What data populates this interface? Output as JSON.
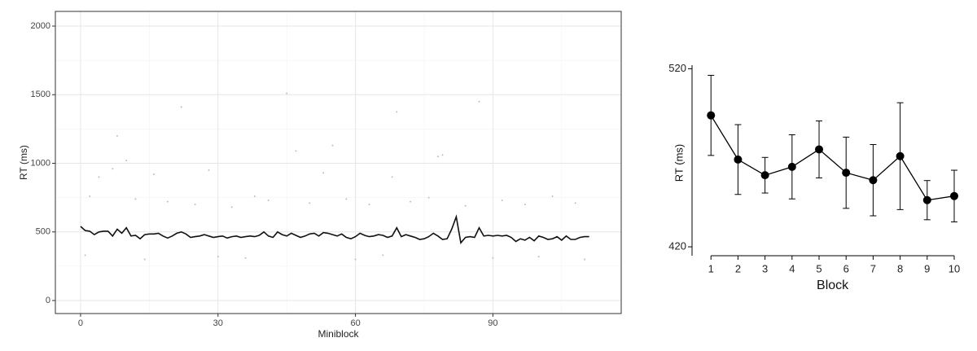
{
  "chart_data": [
    {
      "type": "scatter",
      "x_label": "Miniblock",
      "y_label": "RT (ms)",
      "xlim": [
        -5.5,
        118
      ],
      "ylim": [
        -95,
        2107
      ],
      "xticks": [
        0,
        30,
        60,
        90
      ],
      "yticks": [
        0,
        500,
        1000,
        1500,
        2000
      ],
      "x_minor_ticks": [
        15,
        45,
        75,
        105
      ],
      "y_minor_ticks": [
        250,
        750,
        1250,
        1750
      ],
      "grid": true,
      "points": {
        "color": "#bdbdbd",
        "x": [
          8,
          10,
          22,
          45,
          69,
          87,
          47,
          55,
          7,
          28,
          53,
          78,
          16,
          4,
          68,
          79,
          2,
          12,
          19,
          25,
          33,
          38,
          41,
          50,
          58,
          63,
          72,
          76,
          84,
          92,
          97,
          103,
          108,
          1,
          14,
          30,
          36,
          60,
          66,
          90,
          100,
          110
        ],
        "values": [
          1200,
          1020,
          1410,
          1510,
          1375,
          1450,
          1090,
          1130,
          960,
          950,
          930,
          1050,
          920,
          900,
          900,
          1060,
          760,
          740,
          720,
          700,
          680,
          760,
          730,
          710,
          740,
          700,
          720,
          750,
          690,
          730,
          700,
          760,
          710,
          330,
          300,
          320,
          310,
          300,
          330,
          310,
          320,
          300
        ]
      },
      "line": {
        "color": "#111111",
        "x": [
          0,
          1,
          2,
          3,
          4,
          5,
          6,
          7,
          8,
          9,
          10,
          11,
          12,
          13,
          14,
          15,
          16,
          17,
          18,
          19,
          20,
          21,
          22,
          23,
          24,
          25,
          26,
          27,
          28,
          29,
          30,
          31,
          32,
          33,
          34,
          35,
          36,
          37,
          38,
          39,
          40,
          41,
          42,
          43,
          44,
          45,
          46,
          47,
          48,
          49,
          50,
          51,
          52,
          53,
          54,
          55,
          56,
          57,
          58,
          59,
          60,
          61,
          62,
          63,
          64,
          65,
          66,
          67,
          68,
          69,
          70,
          71,
          72,
          73,
          74,
          75,
          76,
          77,
          78,
          79,
          80,
          81,
          82,
          83,
          84,
          85,
          86,
          87,
          88,
          89,
          90,
          91,
          92,
          93,
          94,
          95,
          96,
          97,
          98,
          99,
          100,
          101,
          102,
          103,
          104,
          105,
          106,
          107,
          108,
          109,
          110,
          111
        ],
        "values": [
          540,
          510,
          505,
          480,
          500,
          505,
          505,
          470,
          520,
          490,
          530,
          470,
          475,
          450,
          480,
          485,
          485,
          490,
          470,
          455,
          470,
          490,
          500,
          485,
          460,
          465,
          470,
          480,
          470,
          460,
          465,
          470,
          455,
          465,
          470,
          460,
          465,
          470,
          465,
          475,
          500,
          470,
          460,
          500,
          480,
          470,
          490,
          475,
          460,
          470,
          485,
          490,
          470,
          495,
          490,
          480,
          470,
          485,
          460,
          450,
          465,
          490,
          475,
          465,
          470,
          480,
          475,
          460,
          470,
          530,
          465,
          480,
          470,
          460,
          445,
          450,
          465,
          490,
          470,
          445,
          450,
          520,
          610,
          420,
          460,
          465,
          460,
          530,
          470,
          475,
          470,
          475,
          470,
          475,
          460,
          430,
          450,
          440,
          460,
          435,
          470,
          460,
          445,
          450,
          465,
          440,
          470,
          445,
          445,
          460,
          465,
          465
        ]
      }
    },
    {
      "type": "errorbar",
      "x_label": "Block",
      "y_label": "RT (ms)",
      "xlim": [
        0.3,
        10
      ],
      "ylim": [
        415,
        522
      ],
      "xticks": [
        1,
        2,
        3,
        4,
        5,
        6,
        7,
        8,
        9,
        10
      ],
      "yticks": [
        420,
        520
      ],
      "color": "#000000",
      "x": [
        1,
        2,
        3,
        4,
        5,
        6,
        7,
        8,
        9,
        10
      ],
      "values": [
        493.8,
        469,
        460.2,
        464.9,
        474.7,
        461.6,
        457.4,
        470.9,
        446.2,
        448.5
      ],
      "errors": [
        22.5,
        19.6,
        10,
        18,
        16,
        20,
        20,
        30,
        11,
        14.5
      ]
    }
  ]
}
